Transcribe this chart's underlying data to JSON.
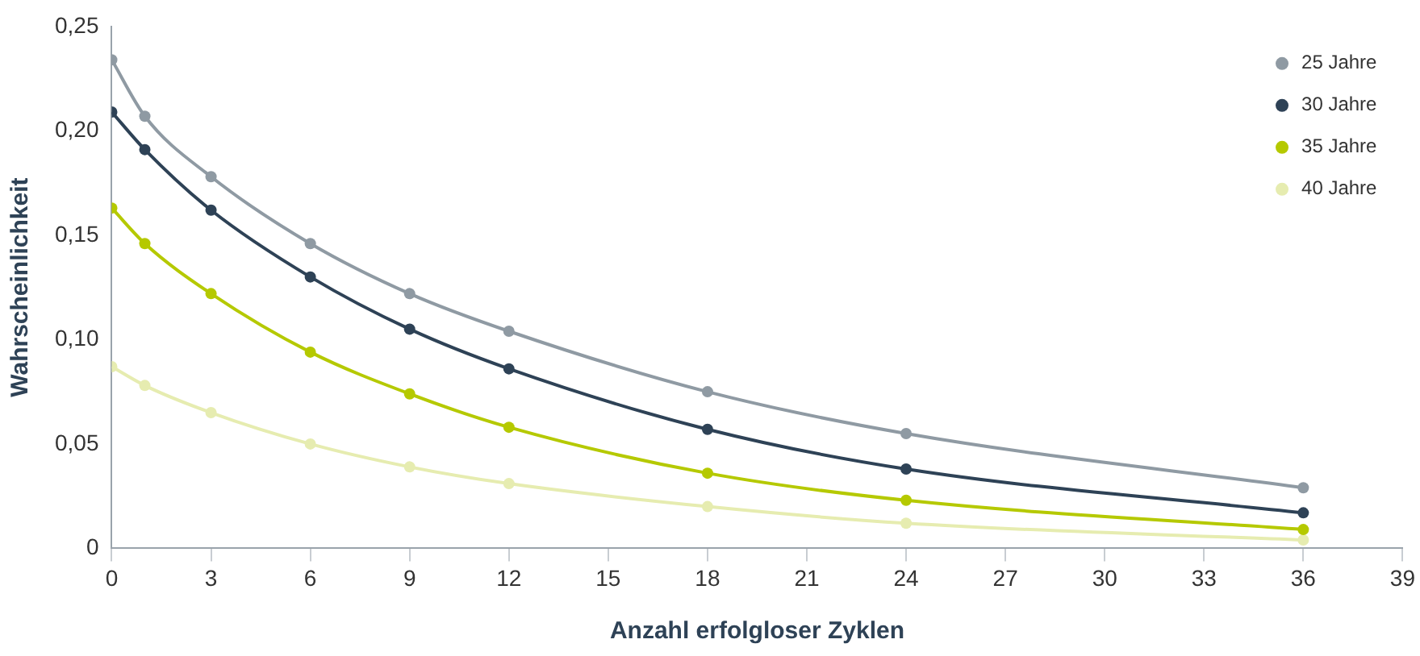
{
  "chart_data": {
    "type": "line",
    "xlabel": "Anzahl erfolgloser Zyklen",
    "ylabel": "Wahrscheinlichkeit",
    "x": [
      0,
      1,
      3,
      6,
      9,
      12,
      18,
      24,
      36
    ],
    "series": [
      {
        "name": "25 Jahre",
        "color": "#8f9aa3",
        "values": [
          0.234,
          0.207,
          0.178,
          0.146,
          0.122,
          0.104,
          0.075,
          0.055,
          0.029
        ]
      },
      {
        "name": "30 Jahre",
        "color": "#2e4256",
        "values": [
          0.209,
          0.191,
          0.162,
          0.13,
          0.105,
          0.086,
          0.057,
          0.038,
          0.017
        ]
      },
      {
        "name": "35 Jahre",
        "color": "#b5c900",
        "values": [
          0.163,
          0.146,
          0.122,
          0.094,
          0.074,
          0.058,
          0.036,
          0.023,
          0.009
        ]
      },
      {
        "name": "40 Jahre",
        "color": "#e6ecb0",
        "values": [
          0.087,
          0.078,
          0.065,
          0.05,
          0.039,
          0.031,
          0.02,
          0.012,
          0.004
        ]
      }
    ],
    "xlim": [
      0,
      39
    ],
    "xticks": [
      0,
      3,
      6,
      9,
      12,
      15,
      18,
      21,
      24,
      27,
      30,
      33,
      36,
      39
    ],
    "ylim": [
      0,
      0.25
    ],
    "yticks": [
      0,
      {
        "value": 0.05,
        "label": "0,05"
      },
      {
        "value": 0.1,
        "label": "0,10"
      },
      {
        "value": 0.15,
        "label": "0,15"
      },
      {
        "value": 0.2,
        "label": "0,20"
      },
      {
        "value": 0.25,
        "label": "0,25"
      }
    ],
    "grid": false,
    "legend": "top right",
    "marker": "circle",
    "line_style": "solid"
  }
}
